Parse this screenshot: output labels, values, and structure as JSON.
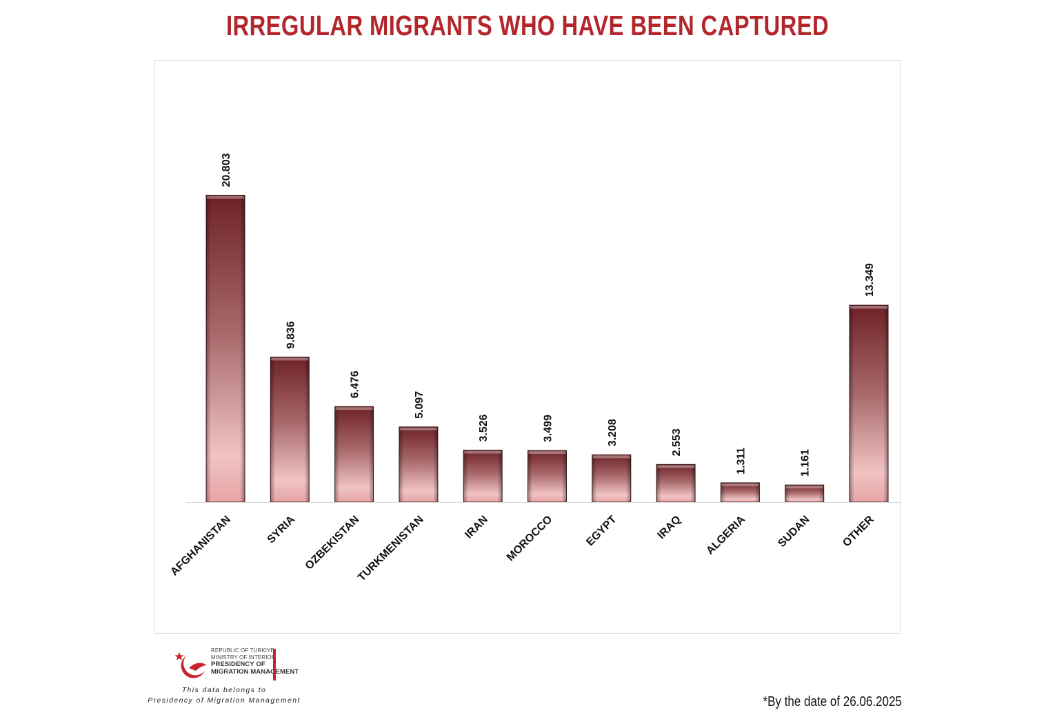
{
  "chart_data": {
    "type": "bar",
    "title": "IRREGULAR MIGRANTS WHO HAVE BEEN CAPTURED",
    "categories": [
      "AFGHANISTAN",
      "SYRIA",
      "OZBEKISTAN",
      "TURKMENISTAN",
      "IRAN",
      "MOROCCO",
      "EGYPT",
      "IRAQ",
      "ALGERIA",
      "SUDAN",
      "OTHER"
    ],
    "values": [
      20803,
      9836,
      6476,
      5097,
      3526,
      3499,
      3208,
      2553,
      1311,
      1161,
      13349
    ],
    "value_labels": [
      "20.803",
      "9.836",
      "6.476",
      "5.097",
      "3.526",
      "3.499",
      "3.208",
      "2.553",
      "1.311",
      "1.161",
      "13.349"
    ],
    "ylim": [
      0,
      27500
    ],
    "xlabel": "",
    "ylabel": "",
    "grid": false,
    "bar_color": "#7a2a2e"
  },
  "logo": {
    "line1": "REPUBLIC OF TÜRKIYE",
    "line2": "MINISTRY OF INTERIOR",
    "line3": "PRESIDENCY OF",
    "line4": "MIGRATION MANAGEMENT"
  },
  "footer": {
    "credit_line1": "This data belongs to",
    "credit_line2": "Presidency of Migration Management",
    "date_note": "*By the date of 26.06.2025"
  }
}
